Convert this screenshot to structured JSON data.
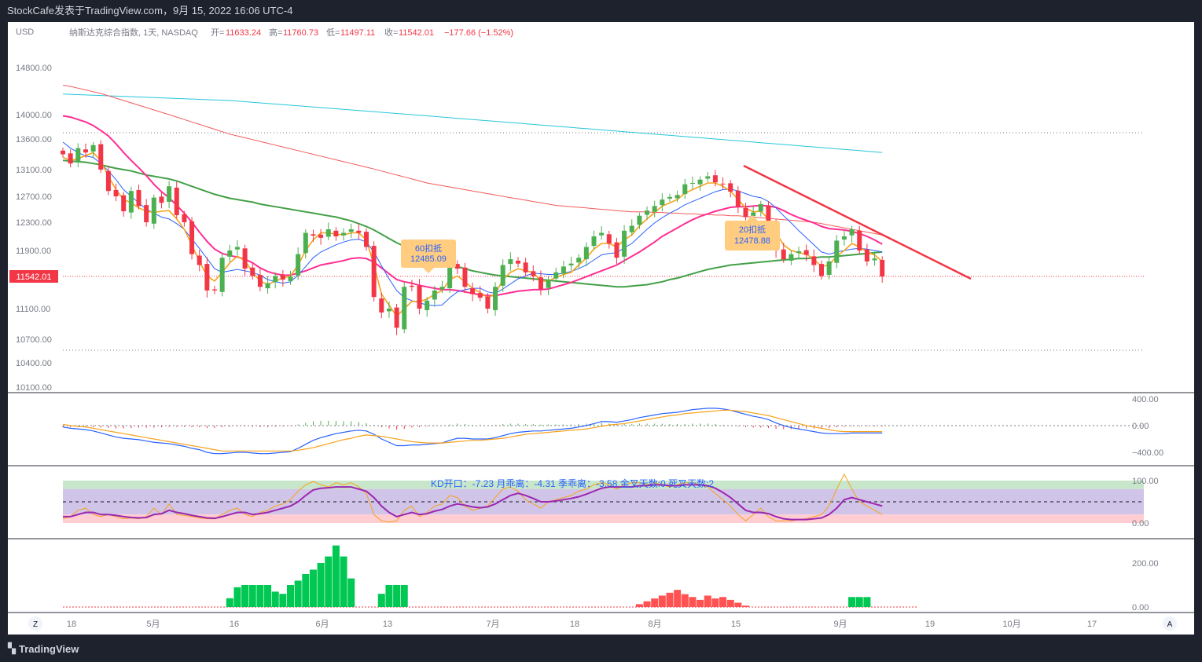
{
  "header": {
    "publisher": "StockCafe发表于TradingView.com，9月 15, 2022 16:06 UTC-4"
  },
  "footer": {
    "brand": "TradingView"
  },
  "currency": "USD",
  "legend": {
    "symbol": "纳斯达克综合指数, 1天, NASDAQ",
    "open_label": "开=",
    "open": "11633.24",
    "high_label": "高=",
    "high": "11760.73",
    "low_label": "低=",
    "low": "11497.11",
    "close_label": "收=",
    "close": "11542.01",
    "change": "−177.66 (−1.52%)"
  },
  "last_price": "11542.01",
  "colors": {
    "up": "#4caf50",
    "down": "#f23645",
    "ma_orange": "#f7a21b",
    "ma_blue": "#2962ff",
    "ma_pink": "#ff2e93",
    "ma_green": "#43a047",
    "ma_red": "#f35a5a",
    "ma_cyan": "#26c6da",
    "trend": "#f23645"
  },
  "annotations": [
    {
      "name": "callout-60",
      "line1": "60扣抵",
      "line2": "12485.09"
    },
    {
      "name": "callout-20",
      "line1": "20扣抵",
      "line2": "12478.88"
    }
  ],
  "kd_text": "KD开口：-7.23  月乖离：-4.31  季乖离：-3.58  金叉天数:0  死叉天数:2",
  "x_axis": {
    "labels": [
      "18",
      "5月",
      "16",
      "6月",
      "13",
      "7月",
      "18",
      "8月",
      "15",
      "9月",
      "19",
      "10月",
      "17"
    ]
  },
  "z_button": "Z",
  "a_button": "A",
  "chart_data": {
    "type": "candlestick",
    "price_axis": {
      "min": 10100,
      "max": 14800,
      "ticks": [
        "14800.00",
        "14000.00",
        "13600.00",
        "13100.00",
        "12700.00",
        "12300.00",
        "11900.00",
        "11100.00",
        "10700.00",
        "10400.00",
        "10100.00"
      ]
    },
    "macd_axis": {
      "ticks": [
        "400.00",
        "0.00",
        "−400.00"
      ]
    },
    "kd_axis": {
      "ticks": [
        "100.00",
        "0.00"
      ]
    },
    "vol_axis": {
      "ticks": [
        "200.00",
        "0.00"
      ]
    },
    "closes": [
      13350,
      13200,
      13450,
      13380,
      13500,
      13100,
      12780,
      12700,
      12470,
      12780,
      12550,
      12300,
      12680,
      12600,
      12850,
      12410,
      12300,
      11850,
      11700,
      11350,
      11350,
      11800,
      11900,
      11950,
      11650,
      11550,
      11400,
      11450,
      11550,
      11500,
      11540,
      11850,
      12150,
      12110,
      12080,
      12200,
      12100,
      12150,
      12200,
      12150,
      11950,
      11260,
      11050,
      11100,
      10850,
      11400,
      11400,
      11100,
      11210,
      11350,
      11400,
      11700,
      11650,
      11400,
      11300,
      11250,
      11100,
      11400,
      11700,
      11780,
      11720,
      11600,
      11550,
      11370,
      11500,
      11600,
      11680,
      11720,
      11800,
      11950,
      12100,
      12150,
      12000,
      11800,
      12180,
      12250,
      12400,
      12480,
      12550,
      12650,
      12690,
      12720,
      12880,
      12900,
      12950,
      13000,
      12910,
      12880,
      12770,
      12540,
      12380,
      12450,
      12580,
      12250,
      11900,
      11780,
      11850,
      11890,
      11840,
      11700,
      11550,
      11750,
      12040,
      12100,
      12200,
      11900,
      11750,
      11790,
      11542
    ],
    "ma_orange": [
      13300,
      13250,
      13280,
      13330,
      13380,
      13240,
      13000,
      12800,
      12650,
      12600,
      12520,
      12470,
      12450,
      12470,
      12480,
      12350,
      12200,
      11980,
      11750,
      11550,
      11480,
      11600,
      11730,
      11820,
      11760,
      11600,
      11480,
      11430,
      11480,
      11520,
      11550,
      11700,
      11900,
      12050,
      12150,
      12150,
      12130,
      12120,
      12150,
      12150,
      12050,
      11700,
      11300,
      11150,
      11000,
      11100,
      11200,
      11200,
      11230,
      11300,
      11350,
      11500,
      11550,
      11470,
      11380,
      11320,
      11250,
      11300,
      11500,
      11600,
      11650,
      11620,
      11600,
      11480,
      11480,
      11530,
      11570,
      11600,
      11700,
      11800,
      11920,
      12000,
      12000,
      11950,
      12050,
      12120,
      12250,
      12350,
      12450,
      12550,
      12600,
      12650,
      12750,
      12800,
      12850,
      12900,
      12900,
      12850,
      12780,
      12650,
      12520,
      12460,
      12470,
      12350,
      12150,
      11980,
      11900,
      11870,
      11850,
      11780,
      11680,
      11700,
      11820,
      11900,
      12000,
      11950,
      11880,
      11840,
      11750
    ],
    "ma_pink": [
      13980,
      13960,
      13920,
      13880,
      13820,
      13740,
      13650,
      13520,
      13380,
      13250,
      13130,
      13010,
      12880,
      12770,
      12680,
      12560,
      12440,
      12300,
      12160,
      12030,
      11920,
      11860,
      11830,
      11810,
      11780,
      11730,
      11660,
      11610,
      11580,
      11560,
      11560,
      11590,
      11620,
      11660,
      11700,
      11720,
      11740,
      11760,
      11790,
      11800,
      11790,
      11740,
      11660,
      11580,
      11500,
      11470,
      11450,
      11420,
      11400,
      11380,
      11360,
      11360,
      11350,
      11330,
      11310,
      11290,
      11280,
      11280,
      11300,
      11320,
      11340,
      11350,
      11360,
      11360,
      11370,
      11400,
      11430,
      11460,
      11500,
      11540,
      11580,
      11620,
      11660,
      11700,
      11760,
      11820,
      11880,
      11950,
      12020,
      12100,
      12160,
      12220,
      12280,
      12340,
      12390,
      12430,
      12470,
      12500,
      12530,
      12540,
      12540,
      12550,
      12560,
      12550,
      12530,
      12480,
      12420,
      12370,
      12330,
      12290,
      12240,
      12210,
      12200,
      12190,
      12170,
      12140,
      12100,
      12050,
      11990
    ],
    "ma_blue": [
      13550,
      13450,
      13380,
      13320,
      13300,
      13200,
      13080,
      12950,
      12800,
      12700,
      12600,
      12500,
      12440,
      12380,
      12350,
      12280,
      12200,
      12060,
      11930,
      11790,
      11650,
      11600,
      11620,
      11640,
      11620,
      11600,
      11560,
      11500,
      11470,
      11450,
      11470,
      11560,
      11680,
      11800,
      11880,
      11930,
      11980,
      12020,
      12050,
      12060,
      12020,
      11880,
      11690,
      11510,
      11350,
      11250,
      11210,
      11180,
      11150,
      11140,
      11150,
      11250,
      11330,
      11360,
      11380,
      11380,
      11330,
      11310,
      11370,
      11440,
      11510,
      11550,
      11590,
      11580,
      11570,
      11570,
      11590,
      11610,
      11650,
      11700,
      11770,
      11840,
      11860,
      11870,
      11940,
      12000,
      12100,
      12200,
      12290,
      12370,
      12440,
      12500,
      12570,
      12620,
      12670,
      12720,
      12770,
      12800,
      12810,
      12780,
      12740,
      12700,
      12680,
      12620,
      12520,
      12400,
      12290,
      12180,
      12080,
      11980,
      11880,
      11850,
      11880,
      11900,
      11920,
      11930,
      11920,
      11900,
      11880
    ],
    "ma_green": [
      13250,
      13240,
      13230,
      13220,
      13200,
      13180,
      13150,
      13120,
      13100,
      13080,
      13050,
      13020,
      13000,
      12980,
      12960,
      12930,
      12890,
      12850,
      12810,
      12770,
      12730,
      12700,
      12670,
      12650,
      12630,
      12610,
      12580,
      12560,
      12540,
      12520,
      12500,
      12480,
      12460,
      12440,
      12420,
      12400,
      12380,
      12350,
      12320,
      12280,
      12240,
      12190,
      12130,
      12070,
      12010,
      11960,
      11910,
      11860,
      11820,
      11780,
      11740,
      11710,
      11680,
      11650,
      11620,
      11600,
      11580,
      11560,
      11550,
      11540,
      11530,
      11520,
      11510,
      11500,
      11490,
      11480,
      11470,
      11460,
      11450,
      11440,
      11430,
      11420,
      11410,
      11400,
      11400,
      11410,
      11420,
      11430,
      11450,
      11470,
      11500,
      11520,
      11550,
      11580,
      11610,
      11640,
      11660,
      11680,
      11700,
      11710,
      11720,
      11730,
      11740,
      11750,
      11760,
      11770,
      11780,
      11790,
      11790,
      11800,
      11810,
      11810,
      11820,
      11830,
      11840,
      11850,
      11860,
      11870,
      11880
    ],
    "ma_red": [
      14500,
      14480,
      14450,
      14420,
      14390,
      14360,
      14320,
      14280,
      14240,
      14200,
      14160,
      14120,
      14080,
      14040,
      14000,
      13960,
      13920,
      13880,
      13840,
      13800,
      13760,
      13720,
      13680,
      13650,
      13620,
      13590,
      13560,
      13530,
      13500,
      13470,
      13440,
      13410,
      13380,
      13350,
      13320,
      13290,
      13260,
      13230,
      13200,
      13170,
      13140,
      13110,
      13080,
      13050,
      13020,
      12990,
      12960,
      12930,
      12900,
      12880,
      12860,
      12840,
      12820,
      12800,
      12780,
      12760,
      12740,
      12720,
      12700,
      12680,
      12660,
      12640,
      12620,
      12600,
      12580,
      12560,
      12550,
      12540,
      12530,
      12520,
      12510,
      12500,
      12490,
      12480,
      12470,
      12460,
      12460,
      12460,
      12450,
      12450,
      12440,
      12440,
      12430,
      12430,
      12420,
      12420,
      12410,
      12410,
      12400,
      12400,
      12390,
      12380,
      12370,
      12360,
      12350,
      12340,
      12330,
      12320,
      12310,
      12300,
      12280,
      12260,
      12240,
      12220,
      12200,
      12180,
      12160,
      12140,
      12120
    ],
    "ma_cyan": [
      14350,
      14345,
      14340,
      14335,
      14330,
      14325,
      14320,
      14315,
      14310,
      14305,
      14300,
      14295,
      14290,
      14285,
      14280,
      14275,
      14270,
      14265,
      14260,
      14255,
      14250,
      14245,
      14240,
      14230,
      14220,
      14210,
      14200,
      14190,
      14180,
      14170,
      14160,
      14150,
      14140,
      14130,
      14120,
      14110,
      14100,
      14090,
      14080,
      14070,
      14060,
      14050,
      14040,
      14030,
      14020,
      14010,
      14000,
      13990,
      13980,
      13970,
      13960,
      13950,
      13940,
      13930,
      13920,
      13910,
      13900,
      13890,
      13880,
      13870,
      13860,
      13850,
      13840,
      13830,
      13820,
      13810,
      13800,
      13790,
      13780,
      13770,
      13760,
      13750,
      13740,
      13730,
      13720,
      13710,
      13700,
      13690,
      13680,
      13670,
      13660,
      13650,
      13640,
      13630,
      13620,
      13610,
      13600,
      13590,
      13580,
      13570,
      13560,
      13550,
      13540,
      13530,
      13520,
      13510,
      13500,
      13490,
      13480,
      13470,
      13460,
      13450,
      13440,
      13430,
      13420,
      13410,
      13400,
      13390,
      13380
    ],
    "macd_line": [
      -20,
      -40,
      -50,
      -60,
      -80,
      -110,
      -140,
      -170,
      -190,
      -200,
      -210,
      -230,
      -250,
      -260,
      -270,
      -290,
      -310,
      -340,
      -360,
      -400,
      -420,
      -420,
      -410,
      -400,
      -400,
      -410,
      -420,
      -420,
      -410,
      -400,
      -390,
      -340,
      -280,
      -220,
      -180,
      -150,
      -120,
      -100,
      -80,
      -70,
      -80,
      -130,
      -200,
      -250,
      -300,
      -300,
      -290,
      -290,
      -280,
      -270,
      -260,
      -220,
      -190,
      -190,
      -200,
      -200,
      -200,
      -180,
      -150,
      -120,
      -100,
      -90,
      -80,
      -80,
      -70,
      -60,
      -50,
      -40,
      -20,
      0,
      30,
      60,
      60,
      50,
      70,
      90,
      120,
      140,
      160,
      180,
      190,
      200,
      220,
      240,
      250,
      260,
      260,
      250,
      230,
      200,
      170,
      140,
      120,
      90,
      40,
      0,
      -30,
      -50,
      -70,
      -90,
      -110,
      -120,
      -120,
      -120,
      -110,
      -110,
      -110,
      -110,
      -110
    ],
    "macd_signal": [
      20,
      0,
      -10,
      -20,
      -40,
      -60,
      -80,
      -100,
      -120,
      -140,
      -160,
      -180,
      -200,
      -220,
      -240,
      -260,
      -280,
      -300,
      -320,
      -340,
      -360,
      -380,
      -380,
      -380,
      -380,
      -380,
      -380,
      -380,
      -380,
      -380,
      -380,
      -370,
      -350,
      -330,
      -300,
      -270,
      -240,
      -210,
      -190,
      -160,
      -140,
      -150,
      -160,
      -180,
      -200,
      -220,
      -240,
      -250,
      -260,
      -260,
      -260,
      -250,
      -240,
      -230,
      -220,
      -220,
      -210,
      -200,
      -190,
      -170,
      -150,
      -130,
      -120,
      -110,
      -100,
      -90,
      -80,
      -70,
      -60,
      -50,
      -30,
      -10,
      10,
      20,
      30,
      50,
      70,
      90,
      110,
      130,
      150,
      160,
      180,
      190,
      200,
      210,
      220,
      230,
      230,
      220,
      210,
      190,
      170,
      150,
      120,
      90,
      60,
      30,
      0,
      -20,
      -40,
      -60,
      -80,
      -90,
      -90,
      -90,
      -90,
      -90,
      -90
    ],
    "kd_k": [
      10,
      15,
      30,
      35,
      20,
      15,
      20,
      15,
      10,
      12,
      10,
      15,
      35,
      20,
      45,
      20,
      18,
      15,
      12,
      10,
      10,
      20,
      30,
      35,
      20,
      15,
      25,
      30,
      40,
      45,
      55,
      75,
      90,
      98,
      90,
      85,
      95,
      90,
      95,
      85,
      70,
      20,
      5,
      2,
      5,
      30,
      40,
      15,
      25,
      40,
      45,
      65,
      60,
      40,
      30,
      35,
      40,
      60,
      80,
      85,
      75,
      55,
      45,
      35,
      50,
      55,
      60,
      65,
      75,
      80,
      90,
      95,
      90,
      80,
      90,
      95,
      95,
      90,
      95,
      90,
      85,
      90,
      95,
      95,
      90,
      85,
      70,
      55,
      40,
      20,
      5,
      20,
      35,
      15,
      5,
      5,
      5,
      8,
      10,
      15,
      20,
      40,
      80,
      115,
      80,
      50,
      40,
      30,
      20
    ],
    "kd_d": [
      15,
      15,
      20,
      25,
      25,
      20,
      20,
      18,
      15,
      13,
      12,
      13,
      20,
      22,
      30,
      25,
      22,
      18,
      15,
      12,
      11,
      15,
      20,
      25,
      25,
      20,
      22,
      25,
      30,
      35,
      40,
      50,
      65,
      78,
      82,
      83,
      85,
      85,
      85,
      80,
      75,
      60,
      40,
      25,
      15,
      20,
      25,
      20,
      22,
      28,
      32,
      40,
      45,
      42,
      38,
      36,
      38,
      45,
      55,
      65,
      70,
      65,
      58,
      50,
      50,
      52,
      55,
      58,
      62,
      68,
      75,
      82,
      85,
      85,
      85,
      85,
      88,
      88,
      90,
      90,
      88,
      88,
      90,
      90,
      90,
      88,
      82,
      72,
      60,
      45,
      30,
      25,
      25,
      22,
      15,
      10,
      8,
      8,
      8,
      10,
      12,
      20,
      35,
      55,
      60,
      55,
      50,
      45,
      40
    ],
    "volume": [
      0,
      0,
      0,
      0,
      0,
      0,
      0,
      0,
      0,
      0,
      0,
      0,
      0,
      0,
      0,
      0,
      0,
      0,
      0,
      0,
      0,
      0,
      40,
      90,
      100,
      100,
      100,
      100,
      70,
      60,
      100,
      120,
      150,
      170,
      200,
      230,
      280,
      230,
      130,
      0,
      0,
      0,
      60,
      100,
      100,
      100,
      0,
      0,
      0,
      0,
      0,
      0,
      0,
      0,
      0,
      0,
      0,
      0,
      0,
      0,
      0,
      0,
      0,
      0,
      0,
      0,
      0,
      0,
      0,
      0,
      0,
      0,
      0,
      0,
      0,
      0,
      0,
      0,
      0,
      0,
      0,
      0,
      0,
      0,
      0,
      0,
      0,
      0,
      0,
      0,
      0,
      0,
      0,
      0,
      0,
      0,
      0,
      0,
      0,
      0,
      0,
      0,
      0,
      0,
      0,
      0,
      0,
      0,
      0
    ]
  }
}
